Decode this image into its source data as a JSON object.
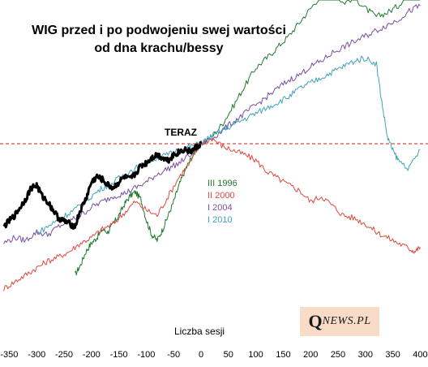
{
  "chart_data": {
    "type": "line",
    "title_line1": "WIG przed i po podwojeniu swej wartości",
    "title_line2": "od dna krachu/bessy",
    "xlabel": "Liczba sesji",
    "xlim": [
      -360,
      402
    ],
    "x_ticks": [
      "-350",
      "-300",
      "-250",
      "-200",
      "-150",
      "-100",
      "-50",
      "0",
      "50",
      "100",
      "150",
      "200",
      "250",
      "300",
      "350",
      "400"
    ],
    "reference_line": {
      "label": "TERAZ",
      "style": "dashed",
      "color": "#d0201c"
    },
    "series": [
      {
        "name": "III 1996",
        "color": "#1f7a2e",
        "x": [
          -230,
          -220,
          -210,
          -200,
          -190,
          -180,
          -170,
          -160,
          -150,
          -140,
          -130,
          -120,
          -110,
          -100,
          -90,
          -80,
          -70,
          -60,
          -50,
          -40,
          -30,
          -20,
          -10,
          0,
          20,
          40,
          60,
          80,
          100,
          120,
          140,
          160,
          180,
          200,
          220,
          230,
          240,
          260,
          280,
          300,
          320,
          340,
          360,
          380,
          390,
          400
        ],
        "y": [
          0.05,
          0.12,
          0.22,
          0.28,
          0.32,
          0.38,
          0.36,
          0.42,
          0.48,
          0.56,
          0.62,
          0.65,
          0.6,
          0.45,
          0.34,
          0.3,
          0.38,
          0.48,
          0.58,
          0.7,
          0.8,
          0.88,
          0.95,
          1.0,
          1.05,
          1.15,
          1.28,
          1.42,
          1.55,
          1.62,
          1.7,
          1.78,
          1.88,
          1.98,
          2.08,
          2.2,
          2.1,
          2.02,
          2.06,
          1.98,
          1.92,
          1.95,
          2.0,
          2.1,
          2.16,
          2.14
        ]
      },
      {
        "name": "II 2000",
        "color": "#e0483c",
        "x": [
          -360,
          -340,
          -320,
          -300,
          -280,
          -260,
          -240,
          -220,
          -200,
          -180,
          -160,
          -140,
          -120,
          -100,
          -80,
          -60,
          -40,
          -20,
          0,
          20,
          40,
          60,
          80,
          100,
          120,
          140,
          160,
          180,
          200,
          220,
          240,
          260,
          280,
          300,
          320,
          340,
          360,
          380,
          390,
          400
        ],
        "y": [
          -0.05,
          0.0,
          0.05,
          0.1,
          0.15,
          0.18,
          0.22,
          0.28,
          0.32,
          0.38,
          0.42,
          0.5,
          0.58,
          0.52,
          0.48,
          0.62,
          0.76,
          0.86,
          1.0,
          1.04,
          0.98,
          0.95,
          0.92,
          0.88,
          0.8,
          0.75,
          0.7,
          0.66,
          0.58,
          0.62,
          0.55,
          0.48,
          0.46,
          0.42,
          0.36,
          0.32,
          0.28,
          0.24,
          0.22,
          0.25
        ]
      },
      {
        "name": "I 2004",
        "color": "#7b4ea3",
        "x": [
          -360,
          -340,
          -320,
          -300,
          -280,
          -260,
          -240,
          -220,
          -200,
          -180,
          -160,
          -140,
          -120,
          -100,
          -80,
          -60,
          -40,
          -20,
          0,
          20,
          40,
          60,
          80,
          100,
          120,
          140,
          160,
          180,
          200,
          220,
          240,
          260,
          280,
          300,
          320,
          340,
          360,
          380,
          400
        ],
        "y": [
          0.28,
          0.32,
          0.3,
          0.36,
          0.34,
          0.4,
          0.44,
          0.48,
          0.54,
          0.58,
          0.62,
          0.64,
          0.68,
          0.72,
          0.78,
          0.82,
          0.86,
          0.92,
          1.0,
          1.04,
          1.1,
          1.16,
          1.22,
          1.28,
          1.34,
          1.4,
          1.46,
          1.5,
          1.56,
          1.6,
          1.66,
          1.7,
          1.74,
          1.78,
          1.82,
          1.86,
          1.9,
          1.96,
          2.0
        ]
      },
      {
        "name": "I 2010",
        "color": "#3ea3b8",
        "x": [
          -300,
          -280,
          -260,
          -240,
          -220,
          -200,
          -180,
          -160,
          -140,
          -120,
          -100,
          -80,
          -60,
          -40,
          -20,
          0,
          20,
          40,
          60,
          80,
          100,
          120,
          140,
          160,
          180,
          200,
          220,
          240,
          260,
          280,
          300,
          320,
          330,
          340,
          350,
          360,
          380,
          400
        ],
        "y": [
          0.35,
          0.4,
          0.45,
          0.5,
          0.55,
          0.62,
          0.68,
          0.72,
          0.78,
          0.82,
          0.86,
          0.9,
          0.92,
          0.96,
          0.98,
          1.0,
          1.06,
          1.1,
          1.14,
          1.18,
          1.22,
          1.26,
          1.3,
          1.34,
          1.4,
          1.44,
          1.48,
          1.52,
          1.56,
          1.6,
          1.62,
          1.58,
          1.3,
          1.05,
          0.95,
          0.88,
          0.82,
          0.96
        ]
      },
      {
        "name": "WIG",
        "color": "#000000",
        "x": [
          -360,
          -350,
          -340,
          -330,
          -320,
          -310,
          -300,
          -290,
          -280,
          -270,
          -260,
          -250,
          -240,
          -230,
          -220,
          -210,
          -200,
          -190,
          -180,
          -170,
          -160,
          -150,
          -140,
          -130,
          -120,
          -110,
          -100,
          -90,
          -80,
          -70,
          -60,
          -50,
          -40,
          -30,
          -20,
          -10,
          0
        ],
        "y": [
          0.4,
          0.44,
          0.48,
          0.54,
          0.6,
          0.68,
          0.7,
          0.62,
          0.58,
          0.52,
          0.46,
          0.44,
          0.42,
          0.4,
          0.52,
          0.6,
          0.72,
          0.76,
          0.74,
          0.7,
          0.68,
          0.72,
          0.76,
          0.74,
          0.78,
          0.84,
          0.86,
          0.9,
          0.92,
          0.9,
          0.88,
          0.92,
          0.94,
          0.96,
          0.94,
          0.97,
          1.0
        ]
      }
    ]
  },
  "logo": {
    "big": "Q",
    "small": "NEWS.PL"
  }
}
